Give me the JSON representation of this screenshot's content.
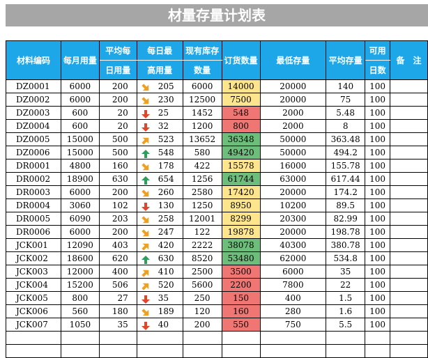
{
  "title": "材量存量计划表",
  "headers": {
    "code": "材料编码",
    "monthly": "每月用量",
    "daily_top": "平均每",
    "daily_bottom": "日用量",
    "peak_top": "每日最",
    "peak_bottom": "高用量",
    "stock_top": "现有库存",
    "stock_bottom": "数量",
    "order": "订货数量",
    "min": "最低存量",
    "avg": "平均存量",
    "days_top": "可用",
    "days_bottom": "日数",
    "note": "备　注"
  },
  "colors": {
    "header_bg": "#1ea7e8",
    "red": "#f07673",
    "yellow": "#fce58c",
    "green": "#6dbe7b"
  },
  "rows": [
    {
      "code": "DZ0001",
      "monthly": "6000",
      "daily": "200",
      "trend": "down-right",
      "peak": "205",
      "stock": "6000",
      "order": "14000",
      "order_color": "yellow",
      "min": "20000",
      "avg": "140",
      "days": "100"
    },
    {
      "code": "DZ0002",
      "monthly": "6000",
      "daily": "200",
      "trend": "down-right",
      "peak": "230",
      "stock": "12500",
      "order": "7500",
      "order_color": "yellow",
      "min": "20000",
      "avg": "75",
      "days": "100"
    },
    {
      "code": "DZ0003",
      "monthly": "600",
      "daily": "20",
      "trend": "down",
      "peak": "25",
      "stock": "1452",
      "order": "548",
      "order_color": "red",
      "min": "2000",
      "avg": "5.48",
      "days": "100"
    },
    {
      "code": "DZ0004",
      "monthly": "600",
      "daily": "20",
      "trend": "down",
      "peak": "32",
      "stock": "1200",
      "order": "800",
      "order_color": "red",
      "min": "2000",
      "avg": "8",
      "days": "100"
    },
    {
      "code": "DZ0005",
      "monthly": "15000",
      "daily": "500",
      "trend": "up-right",
      "peak": "523",
      "stock": "13652",
      "order": "36348",
      "order_color": "green",
      "min": "50000",
      "avg": "363.48",
      "days": "100"
    },
    {
      "code": "DZ0006",
      "monthly": "15000",
      "daily": "500",
      "trend": "up",
      "peak": "548",
      "stock": "580",
      "order": "49420",
      "order_color": "green",
      "min": "50000",
      "avg": "494.2",
      "days": "100"
    },
    {
      "code": "DR0001",
      "monthly": "4800",
      "daily": "160",
      "trend": "down-right",
      "peak": "178",
      "stock": "422",
      "order": "15578",
      "order_color": "yellow",
      "min": "16000",
      "avg": "155.78",
      "days": "100"
    },
    {
      "code": "DR0002",
      "monthly": "18900",
      "daily": "630",
      "trend": "up",
      "peak": "654",
      "stock": "1256",
      "order": "61744",
      "order_color": "green",
      "min": "63000",
      "avg": "617.44",
      "days": "100"
    },
    {
      "code": "DR0003",
      "monthly": "6000",
      "daily": "200",
      "trend": "down-right",
      "peak": "260",
      "stock": "2580",
      "order": "17420",
      "order_color": "yellow",
      "min": "20000",
      "avg": "174.2",
      "days": "100"
    },
    {
      "code": "DR0004",
      "monthly": "3060",
      "daily": "102",
      "trend": "down",
      "peak": "130",
      "stock": "1250",
      "order": "8950",
      "order_color": "yellow",
      "min": "10200",
      "avg": "89.5",
      "days": "100"
    },
    {
      "code": "DR0005",
      "monthly": "6090",
      "daily": "203",
      "trend": "down-right",
      "peak": "258",
      "stock": "12001",
      "order": "8299",
      "order_color": "yellow",
      "min": "20300",
      "avg": "82.99",
      "days": "100"
    },
    {
      "code": "DR0006",
      "monthly": "6000",
      "daily": "200",
      "trend": "down-right",
      "peak": "247",
      "stock": "122",
      "order": "19878",
      "order_color": "yellow",
      "min": "20000",
      "avg": "198.78",
      "days": "100"
    },
    {
      "code": "JCK001",
      "monthly": "12090",
      "daily": "403",
      "trend": "up-right",
      "peak": "420",
      "stock": "2222",
      "order": "38078",
      "order_color": "green",
      "min": "40300",
      "avg": "380.78",
      "days": "100"
    },
    {
      "code": "JCK002",
      "monthly": "18600",
      "daily": "620",
      "trend": "up",
      "peak": "630",
      "stock": "8520",
      "order": "53480",
      "order_color": "green",
      "min": "62000",
      "avg": "534.8",
      "days": "100"
    },
    {
      "code": "JCK003",
      "monthly": "12000",
      "daily": "400",
      "trend": "up-right",
      "peak": "410",
      "stock": "2500",
      "order": "3500",
      "order_color": "red",
      "min": "6000",
      "avg": "35",
      "days": "100"
    },
    {
      "code": "JCK004",
      "monthly": "15200",
      "daily": "506",
      "trend": "up-right",
      "peak": "520",
      "stock": "5600",
      "order": "2200",
      "order_color": "red",
      "min": "7800",
      "avg": "22",
      "days": "100"
    },
    {
      "code": "JCK005",
      "monthly": "800",
      "daily": "27",
      "trend": "down",
      "peak": "35",
      "stock": "250",
      "order": "150",
      "order_color": "red",
      "min": "400",
      "avg": "1.5",
      "days": "100"
    },
    {
      "code": "JCK006",
      "monthly": "560",
      "daily": "180",
      "trend": "down-right",
      "peak": "189",
      "stock": "120",
      "order": "160",
      "order_color": "red",
      "min": "280",
      "avg": "1.6",
      "days": "100"
    },
    {
      "code": "JCK007",
      "monthly": "1050",
      "daily": "35",
      "trend": "down",
      "peak": "40",
      "stock": "200",
      "order": "550",
      "order_color": "red",
      "min": "750",
      "avg": "5.5",
      "days": "100"
    }
  ]
}
